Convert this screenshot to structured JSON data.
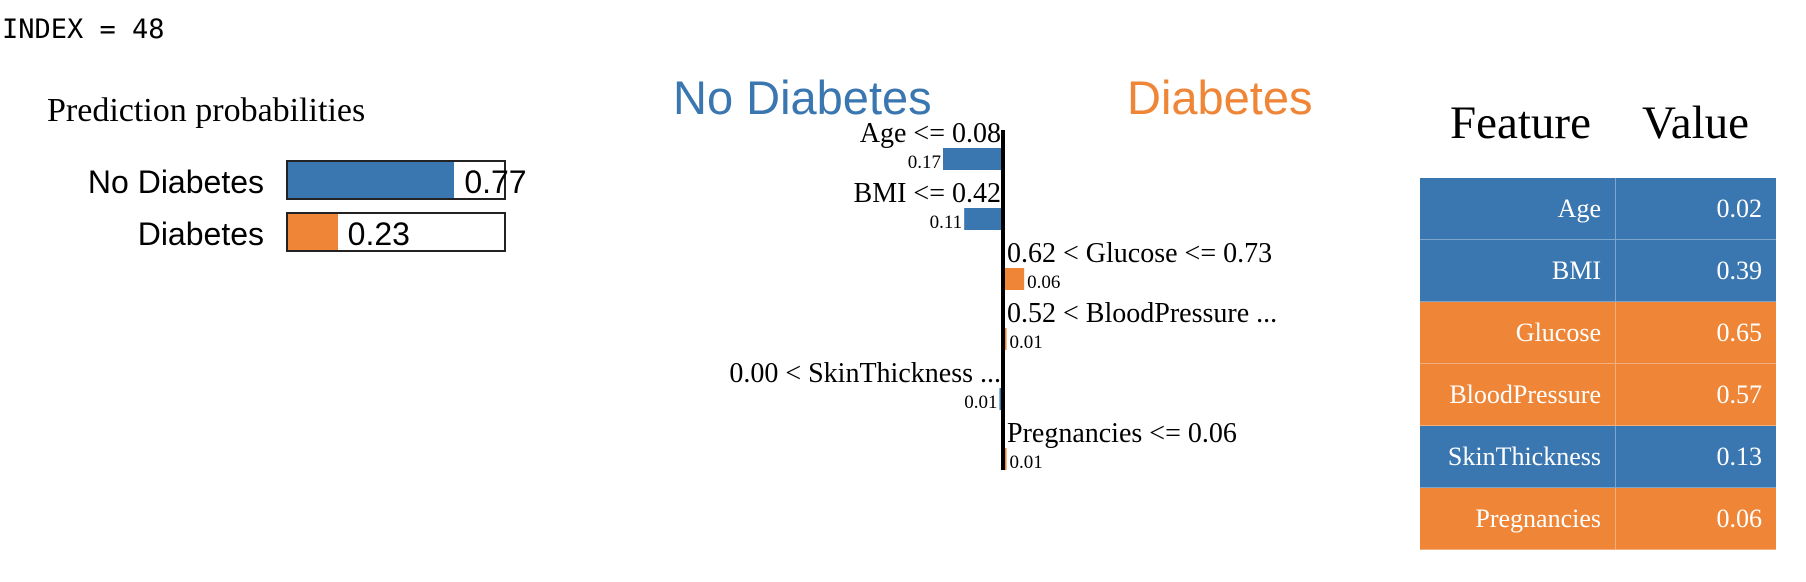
{
  "index_label": "INDEX = 48",
  "colors": {
    "no_diabetes": "#3a76af",
    "diabetes": "#ef8536"
  },
  "prediction_probabilities": {
    "title": "Prediction probabilities",
    "classes": [
      {
        "label": "No Diabetes",
        "value": 0.77,
        "value_text": "0.77",
        "color": "#3a76af"
      },
      {
        "label": "Diabetes",
        "value": 0.23,
        "value_text": "0.23",
        "color": "#ef8536"
      }
    ]
  },
  "explanation": {
    "left_class": "No Diabetes",
    "right_class": "Diabetes"
  },
  "chart_data": {
    "type": "bar",
    "orientation": "horizontal",
    "categories": [
      "Age <= 0.08",
      "BMI <= 0.42",
      "0.62 < Glucose <= 0.73",
      "0.52 < BloodPressure ...",
      "0.00 < SkinThickness ...",
      "Pregnancies <= 0.06"
    ],
    "values": [
      -0.17,
      -0.11,
      0.06,
      0.01,
      -0.01,
      0.01
    ],
    "value_labels": [
      "0.17",
      "0.11",
      "0.06",
      "0.01",
      "0.01",
      "0.01"
    ],
    "xlim": [
      -0.17,
      0.17
    ]
  },
  "feature_table": {
    "headers": [
      "Feature",
      "Value"
    ],
    "rows": [
      {
        "feature": "Age",
        "value": "0.02",
        "color": "#3a76af"
      },
      {
        "feature": "BMI",
        "value": "0.39",
        "color": "#3a76af"
      },
      {
        "feature": "Glucose",
        "value": "0.65",
        "color": "#ef8536"
      },
      {
        "feature": "BloodPressure",
        "value": "0.57",
        "color": "#ef8536"
      },
      {
        "feature": "SkinThickness",
        "value": "0.13",
        "color": "#3a76af"
      },
      {
        "feature": "Pregnancies",
        "value": "0.06",
        "color": "#ef8536"
      }
    ]
  }
}
